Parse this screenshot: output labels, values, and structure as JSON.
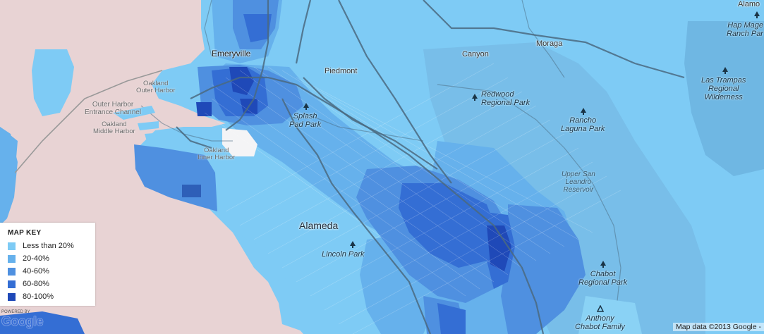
{
  "legend": {
    "title": "MAP KEY",
    "items": [
      {
        "label": "Less than 20%",
        "color": "#7ecbf5"
      },
      {
        "label": "20-40%",
        "color": "#66b1ec"
      },
      {
        "label": "40-60%",
        "color": "#4f90e0"
      },
      {
        "label": "60-80%",
        "color": "#346ed4"
      },
      {
        "label": "80-100%",
        "color": "#1f49b8"
      }
    ]
  },
  "labels": {
    "emeryville": "Emeryville",
    "piedmont": "Piedmont",
    "canyon": "Canyon",
    "moraga": "Moraga",
    "alamo": "Alamo",
    "alameda": "Alameda",
    "oakland_outer_harbor": [
      "Oakland",
      "Outer Harbor"
    ],
    "outer_harbor_channel": [
      "Outer Harbor",
      "Entrance Channel"
    ],
    "oakland_middle_harbor": [
      "Oakland",
      "Middle Harbor"
    ],
    "oakland_inner_harbor": [
      "Oakland",
      "Inner Harbor"
    ],
    "splash_pad_park": [
      "Splash",
      "Pad Park"
    ],
    "redwood_park": [
      "Redwood",
      "Regional Park"
    ],
    "rancho_laguna": [
      "Rancho",
      "Laguna Park"
    ],
    "las_trampas": [
      "Las Trampas",
      "Regional",
      "Wilderness"
    ],
    "hap_magee": [
      "Hap Mage",
      "Ranch Par"
    ],
    "upper_san_leandro": [
      "Upper San",
      "Leandro",
      "Reservoir"
    ],
    "lincoln_park": "Lincoln Park",
    "chabot_park": [
      "Chabot",
      "Regional Park"
    ],
    "anthony_chabot": [
      "Anthony",
      "Chabot Family"
    ]
  },
  "branding": {
    "powered_by": "POWERED BY",
    "google_logo": "Google",
    "attribution": "Map data ©2013  Google -"
  },
  "colors": {
    "land_bg": "#e8d3d4",
    "water": "#dcdcdc",
    "tier1": "#7ecbf5",
    "tier2": "#66b1ec",
    "tier3": "#4f90e0",
    "tier4": "#346ed4",
    "tier5": "#1f49b8",
    "roads": "#4a6a80"
  },
  "icons": [
    "tree-icon",
    "triangle-icon",
    "google-logo"
  ]
}
